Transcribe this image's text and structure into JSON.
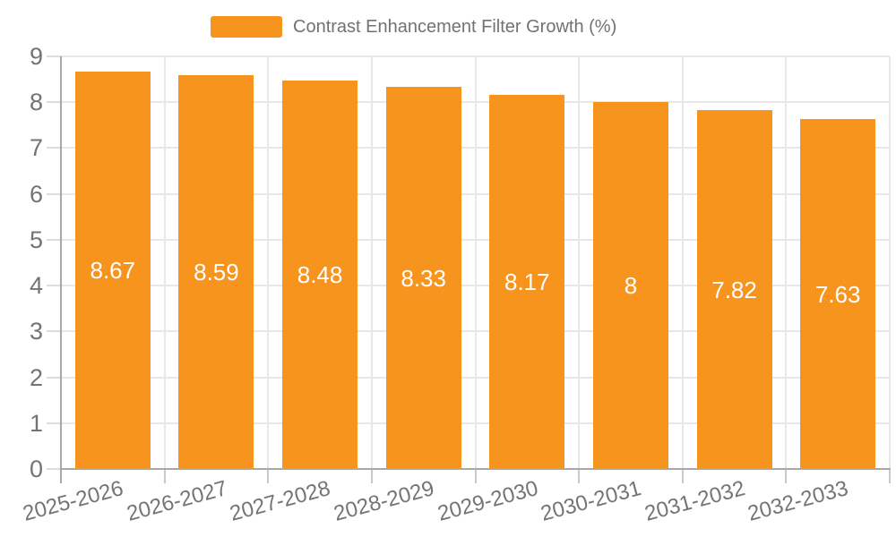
{
  "legend": {
    "label": "Contrast Enhancement Filter Growth (%)"
  },
  "colors": {
    "bar": "#F7941E",
    "grid": "#E7E7E7",
    "axis": "#A8A8A8",
    "y_tick": "#DCDCDC",
    "x_tick": "#C9C9C9",
    "axis_label": "#747474",
    "legend_label": "#6E7377",
    "value_label": "#FFFFFF",
    "background": "#FFFFFF"
  },
  "chart_data": {
    "type": "bar",
    "title": "",
    "legend": [
      "Contrast Enhancement Filter Growth (%)"
    ],
    "legend_position": "top",
    "categories": [
      "2025-2026",
      "2026-2027",
      "2027-2028",
      "2028-2029",
      "2029-2030",
      "2030-2031",
      "2031-2032",
      "2032-2033"
    ],
    "series": [
      {
        "name": "Contrast Enhancement Filter Growth (%)",
        "values": [
          8.67,
          8.59,
          8.48,
          8.33,
          8.17,
          8,
          7.82,
          7.63
        ]
      }
    ],
    "value_labels": [
      "8.67",
      "8.59",
      "8.48",
      "8.33",
      "8.17",
      "8",
      "7.82",
      "7.63"
    ],
    "xlabel": "",
    "ylabel": "",
    "ylim": [
      0,
      9
    ],
    "y_ticks": [
      0,
      1,
      2,
      3,
      4,
      5,
      6,
      7,
      8,
      9
    ],
    "grid": true,
    "x_label_rotation_deg": -15
  }
}
